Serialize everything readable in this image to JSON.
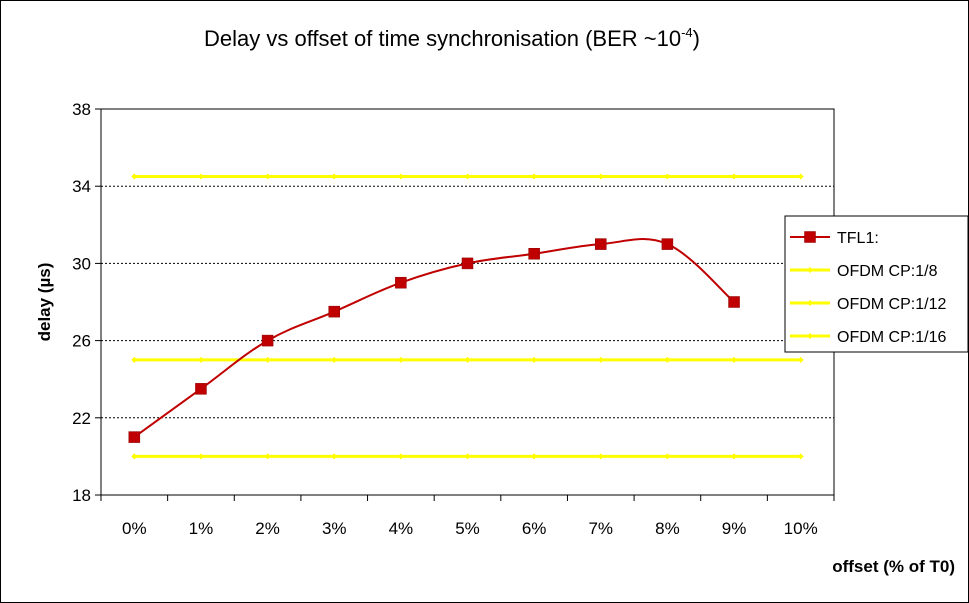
{
  "chart_data": {
    "type": "line",
    "title": "Delay vs offset of time synchronisation (BER ~10",
    "title_superscript": "-4",
    "title_suffix": ")",
    "xlabel": "offset (% of T0)",
    "ylabel": "delay (µs)",
    "categories": [
      "0%",
      "1%",
      "2%",
      "3%",
      "4%",
      "5%",
      "6%",
      "7%",
      "8%",
      "9%",
      "10%"
    ],
    "ylim": [
      18,
      38
    ],
    "yticks": [
      18,
      22,
      26,
      30,
      34,
      38
    ],
    "grid": "horizontal dashed",
    "legend_position": "right",
    "series": [
      {
        "name": "TFL1:",
        "color": "#c00000",
        "marker": "square",
        "values": [
          21,
          23.5,
          26,
          27.5,
          29,
          30,
          30.5,
          31,
          31,
          28,
          null
        ]
      },
      {
        "name": "OFDM CP:1/8",
        "color": "#ffff00",
        "marker": "diamond",
        "values": [
          34.5,
          34.5,
          34.5,
          34.5,
          34.5,
          34.5,
          34.5,
          34.5,
          34.5,
          34.5,
          34.5
        ]
      },
      {
        "name": "OFDM CP:1/12",
        "color": "#ffff00",
        "marker": "diamond",
        "values": [
          25,
          25,
          25,
          25,
          25,
          25,
          25,
          25,
          25,
          25,
          25
        ]
      },
      {
        "name": "OFDM CP:1/16",
        "color": "#ffff00",
        "marker": "diamond",
        "values": [
          20,
          20,
          20,
          20,
          20,
          20,
          20,
          20,
          20,
          20,
          20
        ]
      }
    ]
  }
}
